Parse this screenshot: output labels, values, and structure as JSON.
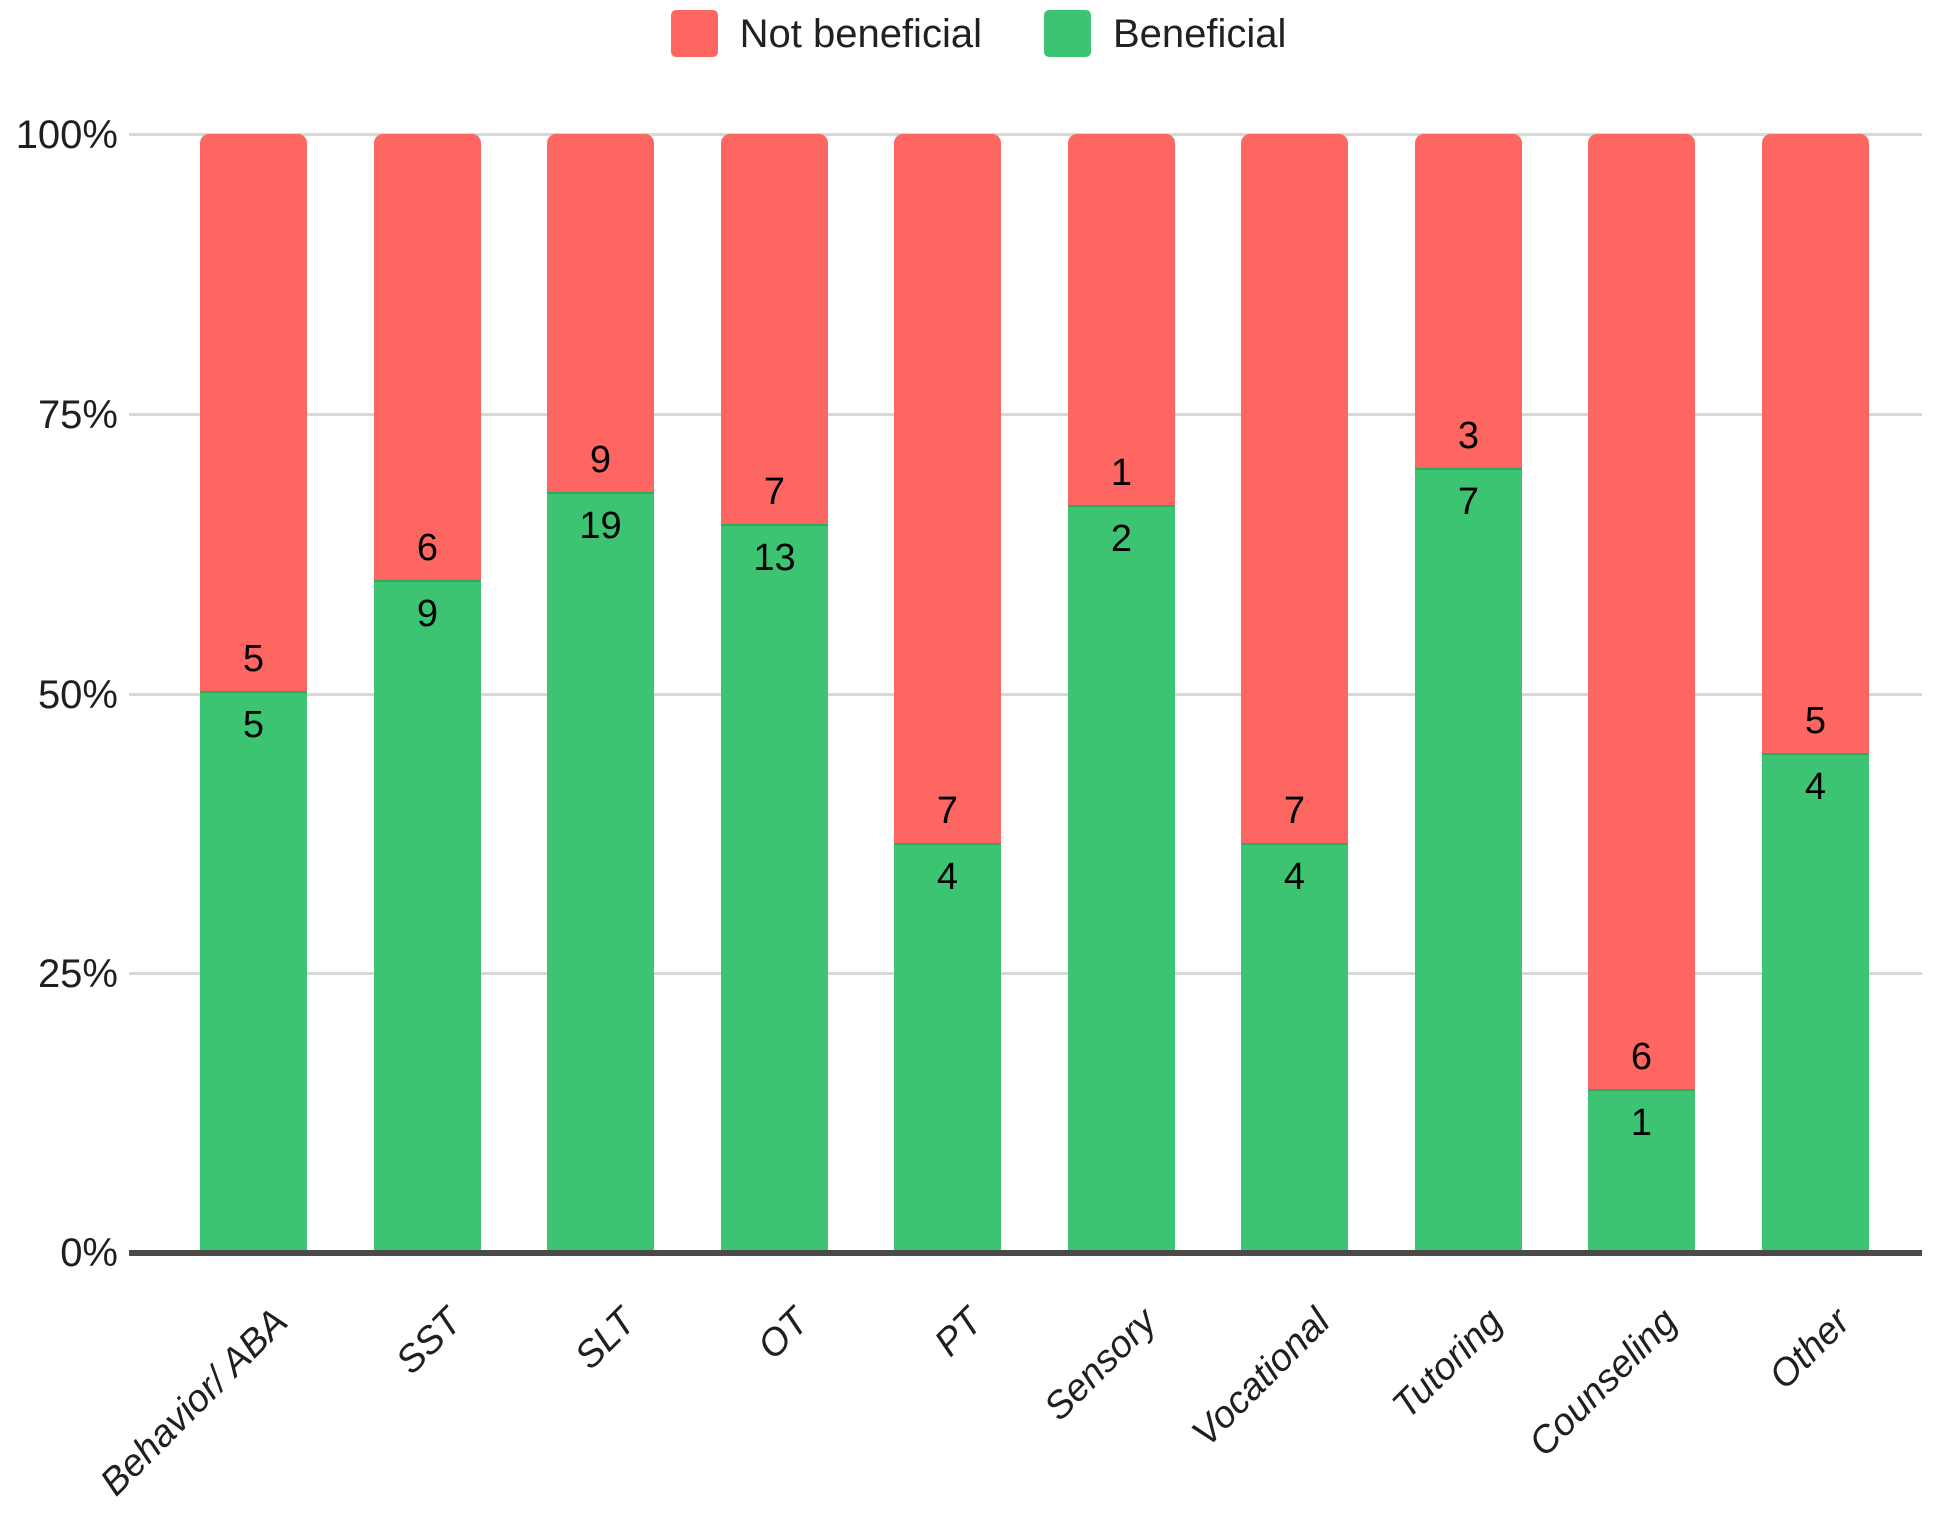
{
  "legend": {
    "items": [
      {
        "label": "Not beneficial",
        "color": "#fd6661"
      },
      {
        "label": "Beneficial",
        "color": "#3cc473"
      }
    ]
  },
  "y_axis": {
    "ticks": [
      "100%",
      "75%",
      "50%",
      "25%",
      "0%"
    ]
  },
  "chart_data": {
    "type": "bar",
    "stacked": "percent_100",
    "orientation": "vertical",
    "title": "",
    "xlabel": "",
    "ylabel": "",
    "ylim": [
      0,
      100
    ],
    "y_tick_labels": [
      "0%",
      "25%",
      "50%",
      "75%",
      "100%"
    ],
    "grid": "horizontal",
    "legend_position": "top-center",
    "categories": [
      "Behavior/ ABA",
      "SST",
      "SLT",
      "OT",
      "PT",
      "Sensory",
      "Vocational",
      "Tutoring",
      "Counseling",
      "Other"
    ],
    "series": [
      {
        "name": "Beneficial",
        "color": "#3cc473",
        "values": [
          5,
          9,
          19,
          13,
          4,
          2,
          4,
          7,
          1,
          4
        ],
        "label_position": "inside-top-of-segment"
      },
      {
        "name": "Not beneficial",
        "color": "#fd6661",
        "values": [
          5,
          6,
          9,
          7,
          7,
          1,
          7,
          3,
          6,
          5
        ],
        "label_position": "inside-bottom-of-segment"
      }
    ],
    "beneficial_percent": [
      50.0,
      60.0,
      67.9,
      65.0,
      36.4,
      66.7,
      36.4,
      70.0,
      14.3,
      44.4
    ]
  },
  "colors": {
    "grid": "#d8d8d8",
    "axis": "#4a4a4a",
    "text": "#1f1f1f",
    "value_label": "#000000"
  }
}
